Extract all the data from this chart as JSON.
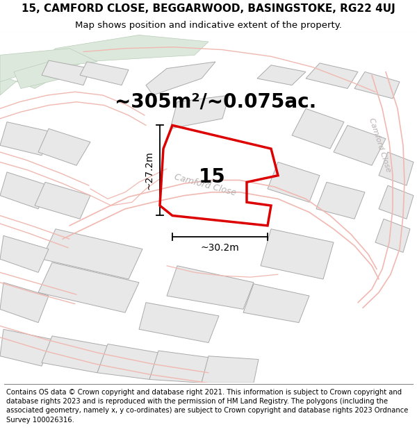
{
  "title_line1": "15, CAMFORD CLOSE, BEGGARWOOD, BASINGSTOKE, RG22 4UJ",
  "title_line2": "Map shows position and indicative extent of the property.",
  "footer_text": "Contains OS data © Crown copyright and database right 2021. This information is subject to Crown copyright and database rights 2023 and is reproduced with the permission of HM Land Registry. The polygons (including the associated geometry, namely x, y co-ordinates) are subject to Crown copyright and database rights 2023 Ordnance Survey 100026316.",
  "area_text": "~305m²/~0.075ac.",
  "width_text": "~30.2m",
  "height_text": "~27.2m",
  "property_number": "15",
  "map_bg": "#ffffff",
  "block_fill": "#e8e8e8",
  "block_edge": "#aaaaaa",
  "green_fill": "#dce8dc",
  "green_edge": "#b8ccb8",
  "road_outline_color": "#f0b8b0",
  "highlight_color": "#dd0000",
  "dim_color": "#000000",
  "street_label_color": "#b8b0b0",
  "title_fontsize": 11,
  "subtitle_fontsize": 9.5,
  "footer_fontsize": 7.2,
  "area_fontsize": 20,
  "dim_fontsize": 10,
  "num_fontsize": 20,
  "street_fontsize": 9
}
